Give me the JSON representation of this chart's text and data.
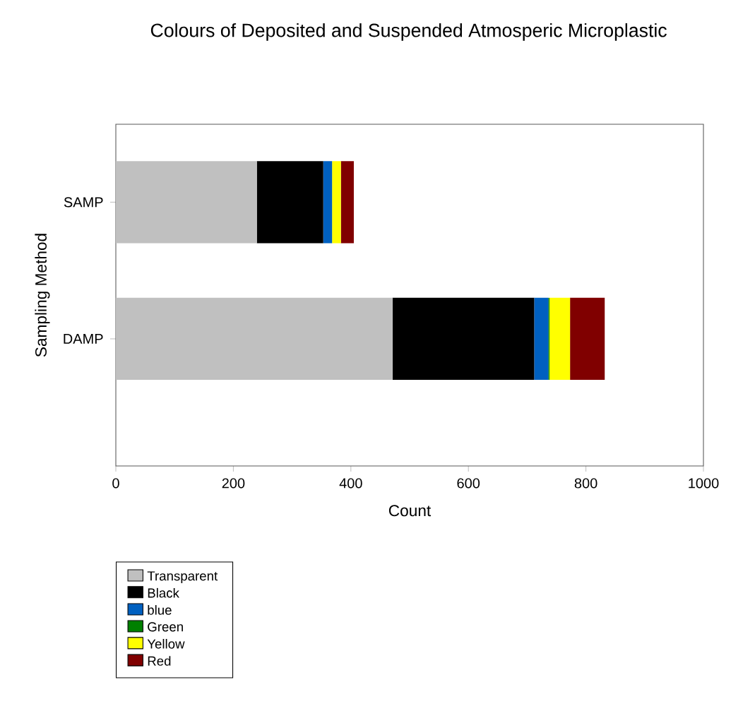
{
  "chart_data": {
    "type": "bar",
    "orientation": "horizontal",
    "stacked": true,
    "title": "Colours of Deposited and Suspended Atmosperic Microplastic",
    "xlabel": "Count",
    "ylabel": "Sampling Method",
    "categories": [
      "SAMP",
      "DAMP"
    ],
    "xlim": [
      0,
      1000
    ],
    "xticks": [
      0,
      200,
      400,
      600,
      800,
      1000
    ],
    "legend": "bottom left",
    "grid": false,
    "series": [
      {
        "name": "Transparent",
        "color": "#c0c0c0",
        "values": [
          240,
          471
        ]
      },
      {
        "name": "Black",
        "color": "#000000",
        "values": [
          113,
          241
        ]
      },
      {
        "name": "blue",
        "color": "#0060c0",
        "values": [
          15,
          24
        ]
      },
      {
        "name": "Green",
        "color": "#008000",
        "values": [
          0,
          2
        ]
      },
      {
        "name": "Yellow",
        "color": "#ffff00",
        "values": [
          15,
          35
        ]
      },
      {
        "name": "Red",
        "color": "#800000",
        "values": [
          22,
          59
        ]
      }
    ]
  }
}
